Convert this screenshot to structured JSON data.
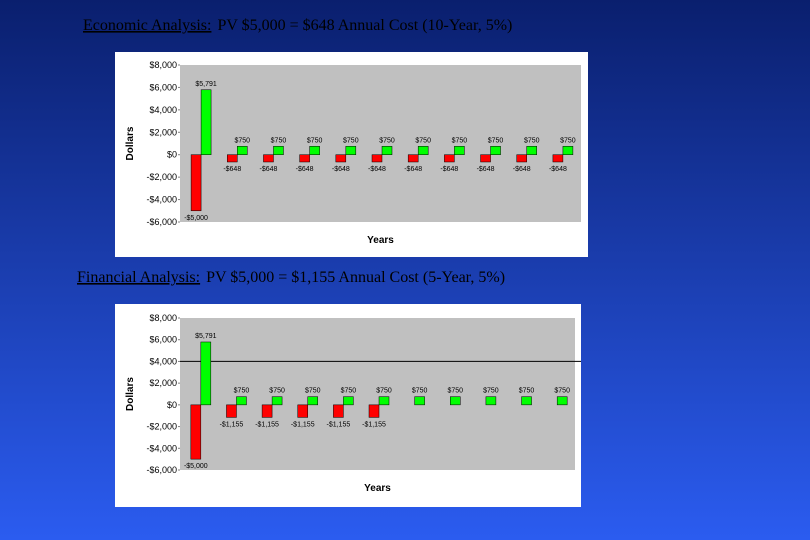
{
  "chart_data": [
    {
      "type": "bar",
      "title": "Economic Analysis:",
      "subtitle": "PV $5,000 = $648 Annual Cost  (10-Year, 5%)",
      "y_label": "Dollars",
      "x_label": "Years",
      "categories": [
        null,
        null,
        null,
        null,
        null,
        null,
        null,
        null,
        null,
        null,
        null
      ],
      "series": [
        {
          "color": "#ff0000",
          "values": [
            -5000,
            -648,
            -648,
            -648,
            -648,
            -648,
            -648,
            -648,
            -648,
            -648,
            -648
          ],
          "value_labels": [
            "-$5,000",
            "-$648",
            "-$648",
            "-$648",
            "-$648",
            "-$648",
            "-$648",
            "-$648",
            "-$648",
            "-$648",
            "-$648"
          ]
        },
        {
          "color": "#00ff00",
          "values": [
            5791,
            750,
            750,
            750,
            750,
            750,
            750,
            750,
            750,
            750,
            750
          ],
          "value_labels": [
            "$5,791",
            "$750",
            "$750",
            "$750",
            "$750",
            "$750",
            "$750",
            "$750",
            "$750",
            "$750",
            "$750"
          ]
        }
      ],
      "ylim": [
        -6000,
        8000
      ],
      "yticks": [
        {
          "value": 8000,
          "label": "$8,000"
        },
        {
          "value": 6000,
          "label": "$6,000"
        },
        {
          "value": 4000,
          "label": "$4,000"
        },
        {
          "value": 2000,
          "label": "$2,000"
        },
        {
          "value": 0,
          "label": "$0"
        },
        {
          "value": -2000,
          "label": "-$2,000"
        },
        {
          "value": -4000,
          "label": "-$4,000"
        },
        {
          "value": -6000,
          "label": "-$6,000"
        }
      ],
      "grid": false
    },
    {
      "type": "bar",
      "title": "Financial Analysis:",
      "subtitle": "PV $5,000 = $1,155 Annual Cost  (5-Year, 5%)",
      "y_label": "Dollars",
      "x_label": "Years",
      "categories": [
        null,
        null,
        null,
        null,
        null,
        null,
        null,
        null,
        null,
        null,
        null
      ],
      "series": [
        {
          "color": "#ff0000",
          "values": [
            -5000,
            -1155,
            -1155,
            -1155,
            -1155,
            -1155,
            null,
            null,
            null,
            null,
            null
          ],
          "value_labels": [
            "-$5,000",
            "-$1,155",
            "-$1,155",
            "-$1,155",
            "-$1,155",
            "-$1,155",
            null,
            null,
            null,
            null,
            null
          ]
        },
        {
          "color": "#00ff00",
          "values": [
            5791,
            750,
            750,
            750,
            750,
            750,
            750,
            750,
            750,
            750,
            750
          ],
          "value_labels": [
            "$5,791",
            "$750",
            "$750",
            "$750",
            "$750",
            "$750",
            "$750",
            "$750",
            "$750",
            "$750",
            "$750"
          ]
        }
      ],
      "ylim": [
        -6000,
        8000
      ],
      "yticks": [
        {
          "value": 8000,
          "label": "$8,000"
        },
        {
          "value": 6000,
          "label": "$6,000"
        },
        {
          "value": 4000,
          "label": "$4,000"
        },
        {
          "value": 2000,
          "label": "$2,000"
        },
        {
          "value": 0,
          "label": "$0"
        },
        {
          "value": -2000,
          "label": "-$2,000"
        },
        {
          "value": -4000,
          "label": "-$4,000"
        },
        {
          "value": -6000,
          "label": "-$6,000"
        }
      ],
      "reference_line": 4000,
      "grid": false
    }
  ]
}
